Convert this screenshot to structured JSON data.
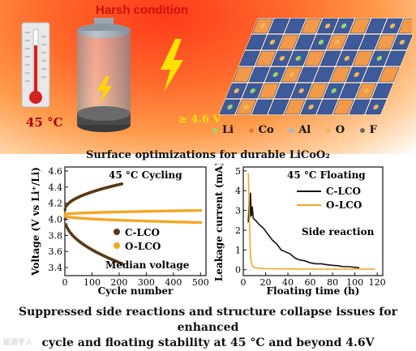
{
  "header": {
    "harsh_label": "Harsh condition",
    "temperature": "45 °C",
    "voltage": "≥ 4.6 V"
  },
  "legend": [
    {
      "label": "Li",
      "color": "#9bd36a"
    },
    {
      "label": "Co",
      "color": "#e07a3a"
    },
    {
      "label": "Al",
      "color": "#a8b6c8"
    },
    {
      "label": "O",
      "color": "#f2b55a"
    },
    {
      "label": "F",
      "color": "#6a6a6a"
    }
  ],
  "subtitle": "Surface optimizations for durable LiCoO₂",
  "footer": {
    "line1": "Suppressed side reactions and structure collapse issues for enhanced",
    "line2": "cycle and floating stability at 45 °C and beyond 4.6V"
  },
  "watermark": "能源学人",
  "chart_data": [
    {
      "type": "scatter",
      "title": "45 °C Cycling",
      "xlabel": "Cycle number",
      "ylabel": "Voltage (V vs Li⁺/Li)",
      "annotation": "Median voltage",
      "xlim": [
        0,
        520
      ],
      "ylim": [
        3.3,
        4.65
      ],
      "xticks": [
        "0",
        "100",
        "200",
        "300",
        "400",
        "500"
      ],
      "yticks": [
        "3.4",
        "3.6",
        "3.8",
        "4.0",
        "4.2",
        "4.4",
        "4.6"
      ],
      "legend_position": "right",
      "series": [
        {
          "name": "C-LCO",
          "color": "#5a3a14",
          "segments": [
            {
              "x": [
                1,
                210
              ],
              "y_start": 4.12,
              "y_end": 4.44,
              "shape": "sqrt"
            },
            {
              "x": [
                1,
                210
              ],
              "y_start": 4.0,
              "y_end": 3.45,
              "shape": "sqrt"
            }
          ]
        },
        {
          "name": "O-LCO",
          "color": "#f5a623",
          "segments": [
            {
              "x": [
                1,
                500
              ],
              "y_start": 4.06,
              "y_end": 4.11,
              "shape": "sqrt"
            },
            {
              "x": [
                1,
                500
              ],
              "y_start": 4.04,
              "y_end": 3.96,
              "shape": "sqrt"
            }
          ]
        }
      ]
    },
    {
      "type": "line",
      "title": "45 °C Floating",
      "xlabel": "Floating time (h)",
      "ylabel": "Leakage current (mA)",
      "annotation": "Side reaction",
      "xlim": [
        0,
        125
      ],
      "ylim": [
        -0.3,
        5.2
      ],
      "xticks": [
        "0",
        "20",
        "40",
        "60",
        "80",
        "100",
        "120"
      ],
      "yticks": [
        "0",
        "1",
        "2",
        "3",
        "4",
        "5"
      ],
      "legend_position": "top-right",
      "series": [
        {
          "name": "C-LCO",
          "color": "#111111",
          "points": [
            [
              4.5,
              2.4
            ],
            [
              5.2,
              3.5
            ],
            [
              5.8,
              2.6
            ],
            [
              6.5,
              3.9
            ],
            [
              7.2,
              2.7
            ],
            [
              8,
              3.2
            ],
            [
              9,
              2.6
            ],
            [
              11,
              2.5
            ],
            [
              14,
              2.3
            ],
            [
              18,
              2.1
            ],
            [
              22,
              1.8
            ],
            [
              26,
              1.5
            ],
            [
              30,
              1.3
            ],
            [
              34,
              1.0
            ],
            [
              38,
              0.9
            ],
            [
              42,
              0.8
            ],
            [
              46,
              0.6
            ],
            [
              50,
              0.5
            ],
            [
              55,
              0.45
            ],
            [
              60,
              0.35
            ],
            [
              65,
              0.3
            ],
            [
              70,
              0.3
            ],
            [
              75,
              0.25
            ],
            [
              80,
              0.22
            ],
            [
              85,
              0.2
            ],
            [
              90,
              0.15
            ],
            [
              95,
              0.15
            ],
            [
              100,
              0.12
            ],
            [
              104,
              0.1
            ]
          ]
        },
        {
          "name": "O-LCO",
          "color": "#f5a623",
          "points": [
            [
              4.5,
              4.9
            ],
            [
              5.5,
              2.5
            ],
            [
              6.5,
              0.6
            ],
            [
              8,
              0.2
            ],
            [
              10,
              0.1
            ],
            [
              20,
              0.05
            ],
            [
              40,
              0.04
            ],
            [
              60,
              0.03
            ],
            [
              80,
              0.03
            ],
            [
              100,
              0.03
            ],
            [
              118,
              0.03
            ]
          ]
        }
      ]
    }
  ]
}
